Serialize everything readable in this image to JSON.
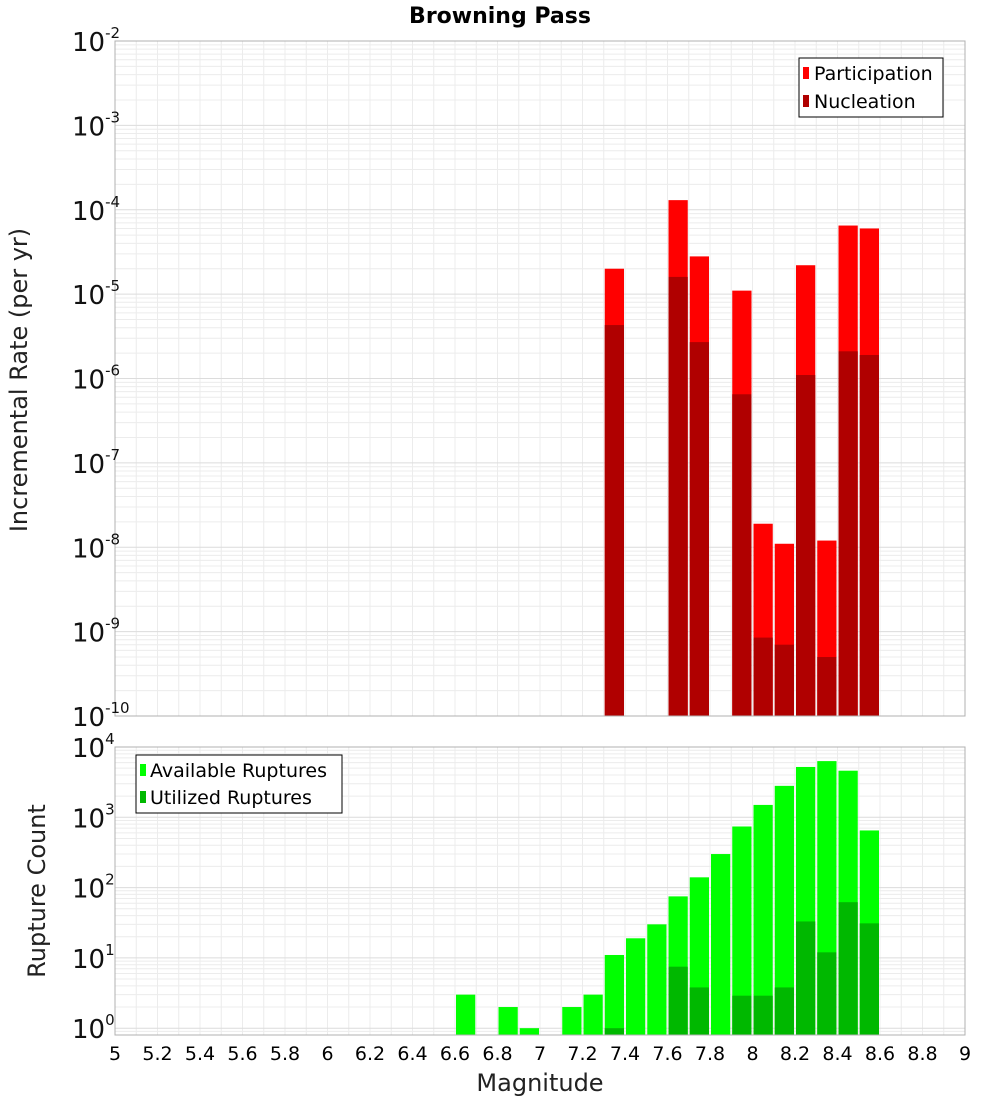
{
  "chart_data": [
    {
      "type": "bar",
      "title": "Browning Pass",
      "xlabel": "",
      "ylabel": "Incremental Rate (per yr)",
      "yscale": "log",
      "ylim": [
        1e-10,
        0.01
      ],
      "xlim": [
        5,
        9
      ],
      "grid": true,
      "legend_position": "top-right",
      "yticks": [
        {
          "base": "10",
          "exp": "-2"
        },
        {
          "base": "10",
          "exp": "-3"
        },
        {
          "base": "10",
          "exp": "-4"
        },
        {
          "base": "10",
          "exp": "-5"
        },
        {
          "base": "10",
          "exp": "-6"
        },
        {
          "base": "10",
          "exp": "-7"
        },
        {
          "base": "10",
          "exp": "-8"
        },
        {
          "base": "10",
          "exp": "-9"
        },
        {
          "base": "10",
          "exp": "-10"
        }
      ],
      "series": [
        {
          "name": "Participation",
          "color": "#ff0000",
          "x": [
            7.35,
            7.65,
            7.75,
            7.95,
            8.05,
            8.15,
            8.25,
            8.35,
            8.45,
            8.55
          ],
          "values": [
            2e-05,
            0.00013,
            2.8e-05,
            1.1e-05,
            1.9e-08,
            1.1e-08,
            2.2e-05,
            1.2e-08,
            6.5e-05,
            6e-05
          ]
        },
        {
          "name": "Nucleation",
          "color": "#b00000",
          "x": [
            7.35,
            7.65,
            7.75,
            7.95,
            8.05,
            8.15,
            8.25,
            8.35,
            8.45,
            8.55
          ],
          "values": [
            4.3e-06,
            1.6e-05,
            2.7e-06,
            6.5e-07,
            8.5e-10,
            7e-10,
            1.1e-06,
            5e-10,
            2.1e-06,
            1.9e-06
          ]
        }
      ]
    },
    {
      "type": "bar",
      "title": "",
      "xlabel": "Magnitude",
      "ylabel": "Rupture Count",
      "yscale": "log",
      "ylim": [
        0.8,
        10000
      ],
      "xlim": [
        5,
        9
      ],
      "grid": true,
      "legend_position": "top-left",
      "xticks": [
        "5",
        "5.2",
        "5.4",
        "5.6",
        "5.8",
        "6",
        "6.2",
        "6.4",
        "6.6",
        "6.8",
        "7",
        "7.2",
        "7.4",
        "7.6",
        "7.8",
        "8",
        "8.2",
        "8.4",
        "8.6",
        "8.8",
        "9"
      ],
      "yticks": [
        {
          "base": "10",
          "exp": "4"
        },
        {
          "base": "10",
          "exp": "3"
        },
        {
          "base": "10",
          "exp": "2"
        },
        {
          "base": "10",
          "exp": "1"
        },
        {
          "base": "10",
          "exp": "0"
        }
      ],
      "series": [
        {
          "name": "Available Ruptures",
          "color": "#00ff00",
          "x": [
            6.65,
            6.85,
            6.95,
            7.15,
            7.25,
            7.35,
            7.45,
            7.55,
            7.65,
            7.75,
            7.85,
            7.95,
            8.05,
            8.15,
            8.25,
            8.35,
            8.45,
            8.55
          ],
          "values": [
            3,
            2,
            1,
            2,
            3,
            11,
            19,
            30,
            75,
            140,
            300,
            740,
            1500,
            2800,
            5200,
            6300,
            4600,
            650
          ]
        },
        {
          "name": "Utilized Ruptures",
          "color": "#00b800",
          "x": [
            7.35,
            7.65,
            7.75,
            7.95,
            8.05,
            8.15,
            8.25,
            8.35,
            8.45,
            8.55
          ],
          "values": [
            1,
            7.5,
            3.8,
            2.9,
            2.9,
            3.8,
            33,
            12,
            62,
            31
          ]
        }
      ]
    }
  ]
}
